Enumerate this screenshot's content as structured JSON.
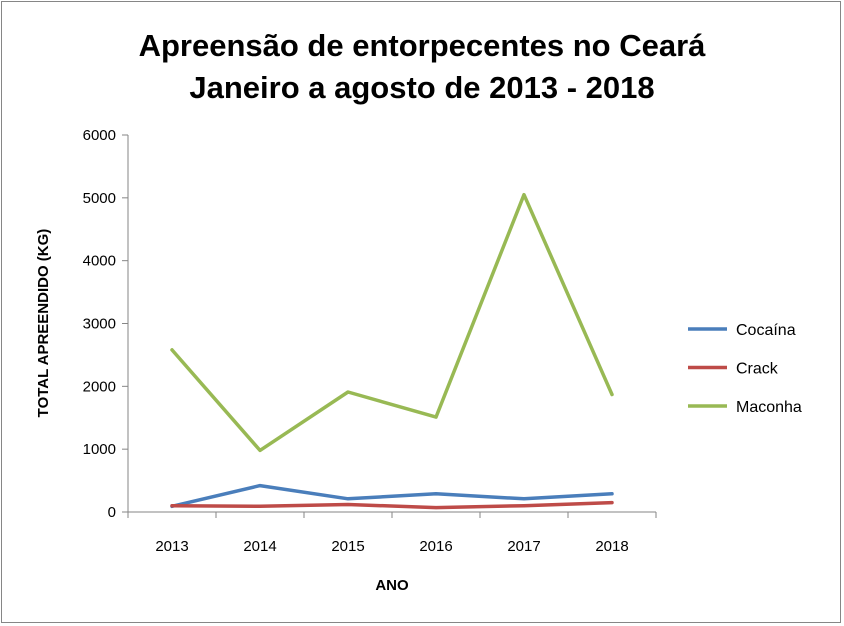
{
  "chart_data": {
    "type": "line",
    "title": "Apreensão de entorpecentes no Ceará",
    "subtitle": "Janeiro a agosto de 2013 - 2018",
    "xlabel": "ANO",
    "ylabel": "TOTAL APREENDIDO (KG)",
    "categories": [
      "2013",
      "2014",
      "2015",
      "2016",
      "2017",
      "2018"
    ],
    "ylim": [
      0,
      6000
    ],
    "yticks": [
      "0",
      "1000",
      "2000",
      "3000",
      "4000",
      "5000",
      "6000"
    ],
    "grid": false,
    "legend_position": "right",
    "series": [
      {
        "name": "Cocaína",
        "color": "#4a7ebb",
        "values": [
          90,
          420,
          210,
          290,
          210,
          290
        ]
      },
      {
        "name": "Crack",
        "color": "#be4b48",
        "values": [
          100,
          90,
          120,
          70,
          100,
          150
        ]
      },
      {
        "name": "Maconha",
        "color": "#98b954",
        "values": [
          2580,
          980,
          1910,
          1510,
          5050,
          1870
        ]
      }
    ]
  }
}
